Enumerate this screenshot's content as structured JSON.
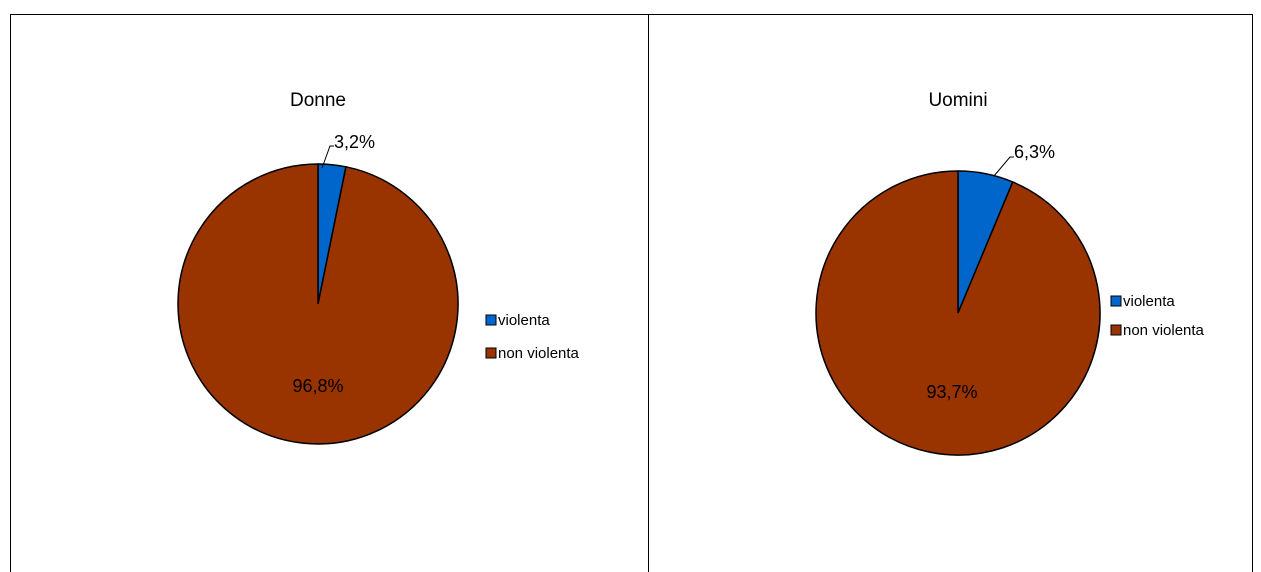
{
  "chart_data": [
    {
      "type": "pie",
      "title": "Donne",
      "categories": [
        "violenta",
        "non violenta"
      ],
      "values": [
        3.2,
        96.8
      ],
      "data_labels": [
        "3,2%",
        "96,8%"
      ],
      "colors": [
        "#0066CC",
        "#993300"
      ],
      "legend": "right"
    },
    {
      "type": "pie",
      "title": "Uomini",
      "categories": [
        "violenta",
        "non violenta"
      ],
      "values": [
        6.3,
        93.7
      ],
      "data_labels": [
        "6,3%",
        "93,7%"
      ],
      "colors": [
        "#0066CC",
        "#993300"
      ],
      "legend": "right"
    }
  ]
}
